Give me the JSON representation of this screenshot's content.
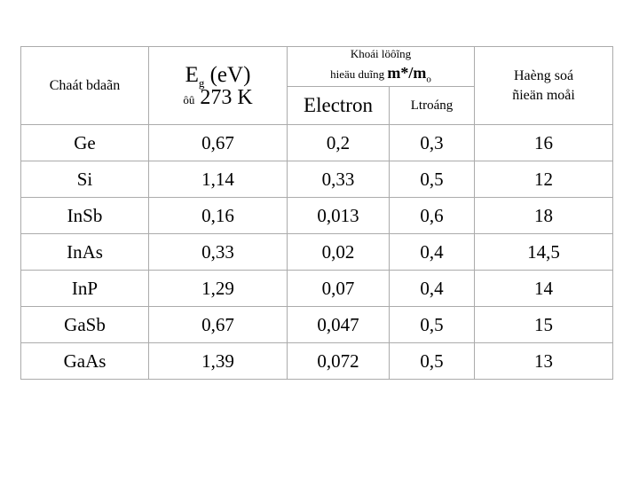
{
  "table": {
    "background": "#ffffff",
    "border_color": "#ababab",
    "text_color": "#000000",
    "columns": {
      "material": "Chaát bdaãn",
      "eg_main": "E",
      "eg_sub": "g",
      "eg_unit": " (eV)",
      "eg_at_small": "ôû",
      "eg_at_value": "273 K",
      "mass_line1": "Khoái löôĩng",
      "mass_line2_prefix": "hieäu duĩng ",
      "mass_symbol": "m*/m",
      "mass_symbol_sub": "o",
      "electron": "Electron",
      "hole": "Ltroáng",
      "dielectric_line1": "Haèng soá",
      "dielectric_line2": "ñieän moåi"
    },
    "rows": [
      {
        "material": "Ge",
        "eg": "0,67",
        "electron": "0,2",
        "hole": "0,3",
        "dielectric": "16"
      },
      {
        "material": "Si",
        "eg": "1,14",
        "electron": "0,33",
        "hole": "0,5",
        "dielectric": "12"
      },
      {
        "material": "InSb",
        "eg": "0,16",
        "electron": "0,013",
        "hole": "0,6",
        "dielectric": "18"
      },
      {
        "material": "InAs",
        "eg": "0,33",
        "electron": "0,02",
        "hole": "0,4",
        "dielectric": "14,5"
      },
      {
        "material": "InP",
        "eg": "1,29",
        "electron": "0,07",
        "hole": "0,4",
        "dielectric": "14"
      },
      {
        "material": "GaSb",
        "eg": "0,67",
        "electron": "0,047",
        "hole": "0,5",
        "dielectric": "15"
      },
      {
        "material": "GaAs",
        "eg": "1,39",
        "electron": "0,072",
        "hole": "0,5",
        "dielectric": "13"
      }
    ]
  }
}
